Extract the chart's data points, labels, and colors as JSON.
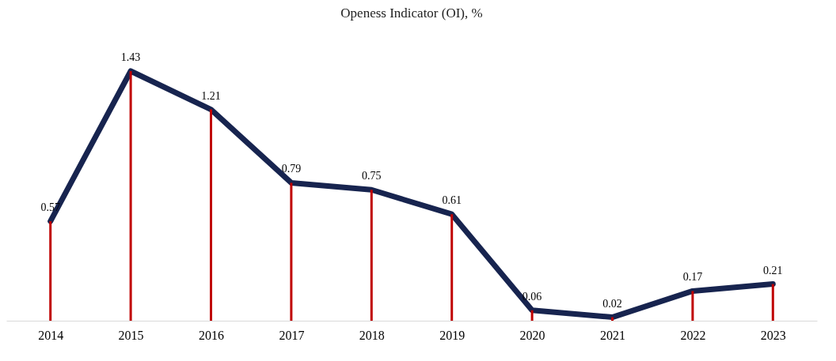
{
  "chart_data": {
    "type": "line",
    "title": "Openess Indicator (OI), %",
    "categories": [
      "2014",
      "2015",
      "2016",
      "2017",
      "2018",
      "2019",
      "2020",
      "2021",
      "2022",
      "2023"
    ],
    "series": [
      {
        "type": "bar",
        "color": "#c00000",
        "values": [
          0.57,
          1.43,
          1.21,
          0.79,
          0.75,
          0.61,
          0.06,
          0.02,
          0.17,
          0.21
        ]
      },
      {
        "color": "#17244f",
        "values": [
          0.57,
          1.43,
          1.21,
          0.79,
          0.75,
          0.61,
          0.06,
          0.02,
          0.17,
          0.21
        ],
        "value_labels": [
          "0.57",
          "1.43",
          "1.21",
          "0.79",
          "0.75",
          "0.61",
          "0.06",
          "0.02",
          "0.17",
          "0.21"
        ]
      }
    ],
    "tick_labels": "x",
    "grid": false,
    "marker": "none",
    "line_style": "solid"
  }
}
